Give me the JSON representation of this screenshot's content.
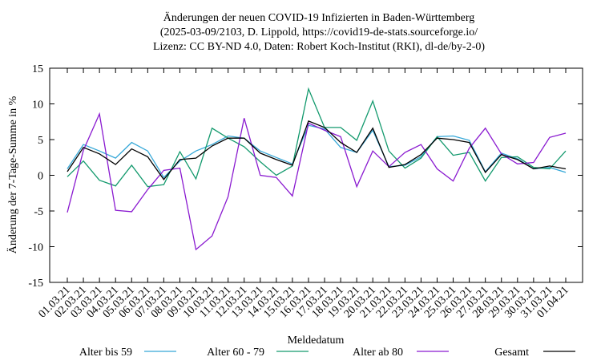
{
  "chart_data": {
    "type": "line",
    "title_lines": [
      "Änderungen der neuen COVID-19 Infizierten in Baden-Württemberg",
      "(2025-03-09/2103, D. Lippold, https://covid19-de-stats.sourceforge.io/",
      "Lizenz: CC BY-ND 4.0, Daten: Robert Koch-Institut (RKI), dl-de/by-2-0)"
    ],
    "x_label": "Meldedatum",
    "y_label": "Änderung der 7-Tage-Summe in %",
    "categories": [
      "01.03.21",
      "02.03.21",
      "03.03.21",
      "04.03.21",
      "05.03.21",
      "06.03.21",
      "07.03.21",
      "08.03.21",
      "09.03.21",
      "10.03.21",
      "11.03.21",
      "12.03.21",
      "13.03.21",
      "14.03.21",
      "15.03.21",
      "16.03.21",
      "17.03.21",
      "18.03.21",
      "19.03.21",
      "20.03.21",
      "21.03.21",
      "22.03.21",
      "23.03.21",
      "24.03.21",
      "25.03.21",
      "26.03.21",
      "27.03.21",
      "28.03.21",
      "29.03.21",
      "30.03.21",
      "31.03.21",
      "01.04.21"
    ],
    "series": [
      {
        "name": "Alter bis 59",
        "color": "#36a8d8",
        "values": [
          0.9,
          4.3,
          3.4,
          2.4,
          4.6,
          3.4,
          -0.3,
          2.0,
          3.4,
          4.3,
          5.5,
          5.2,
          3.4,
          2.5,
          1.6,
          7.0,
          6.5,
          3.9,
          3.2,
          6.3,
          1.2,
          1.4,
          2.6,
          5.4,
          5.5,
          4.9,
          0.5,
          3.1,
          2.3,
          0.9,
          1.1,
          0.4
        ]
      },
      {
        "name": "Alter 60 - 79",
        "color": "#149a6e",
        "values": [
          -0.2,
          2.0,
          -0.7,
          -1.5,
          1.4,
          -1.6,
          -1.3,
          3.3,
          -0.5,
          6.6,
          5.2,
          4.0,
          1.9,
          0.0,
          1.3,
          12.1,
          6.7,
          6.7,
          4.9,
          10.4,
          3.4,
          1.0,
          2.4,
          5.4,
          2.8,
          3.2,
          -0.8,
          2.5,
          2.6,
          1.1,
          0.9,
          3.4
        ]
      },
      {
        "name": "Alter ab 80",
        "color": "#8a1ad0",
        "values": [
          -5.2,
          3.5,
          8.6,
          -4.9,
          -5.1,
          -2.0,
          0.7,
          1.0,
          -10.4,
          -8.5,
          -3.0,
          8.0,
          0.0,
          -0.3,
          -2.9,
          7.3,
          6.3,
          5.4,
          -1.6,
          3.4,
          1.2,
          3.2,
          4.3,
          0.9,
          -0.8,
          3.8,
          6.6,
          3.0,
          1.6,
          1.8,
          5.3,
          5.9
        ]
      },
      {
        "name": "Gesamt",
        "color": "#000000",
        "values": [
          0.5,
          3.9,
          3.0,
          1.5,
          3.7,
          2.6,
          -0.6,
          2.2,
          2.4,
          4.1,
          5.2,
          5.2,
          3.1,
          2.2,
          1.4,
          7.6,
          6.7,
          4.6,
          3.2,
          6.6,
          1.1,
          1.5,
          2.9,
          5.2,
          5.0,
          4.6,
          0.4,
          2.9,
          2.2,
          0.9,
          1.3,
          0.9
        ]
      }
    ],
    "ylim": [
      -15,
      15
    ],
    "yticks": [
      -15,
      -10,
      -5,
      0,
      5,
      10,
      15
    ]
  }
}
